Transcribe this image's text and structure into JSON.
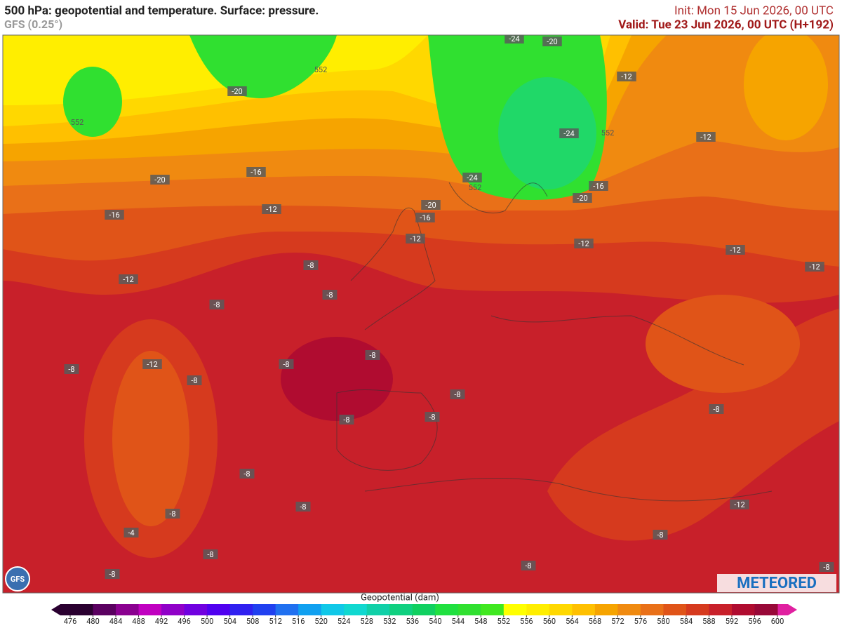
{
  "header": {
    "title": "500 hPa: geopotential and temperature. Surface: pressure.",
    "model": "GFS (0.25°)",
    "init": "Init: Mon 15 Jun 2026, 00 UTC",
    "valid": "Valid: Tue 23 Jun 2026, 00 UTC (H+192)"
  },
  "map": {
    "temperature_labels": [
      "-24",
      "-20",
      "-20",
      "-12",
      "-24",
      "-12",
      "-16",
      "-20",
      "-24",
      "-16",
      "-20",
      "-20",
      "-16",
      "-12",
      "-16",
      "-12",
      "-12",
      "-12",
      "-8",
      "-12",
      "-12",
      "-8",
      "-8",
      "-8",
      "-12",
      "-8",
      "-8",
      "-8",
      "-8",
      "-8",
      "-8",
      "-8",
      "-8",
      "-8",
      "-8",
      "-12",
      "-4",
      "-8",
      "-8",
      "-8",
      "-8",
      "-8"
    ],
    "isoline_labels": [
      "552",
      "552",
      "552",
      "552"
    ]
  },
  "colorbar": {
    "label": "Geopotential (dam)",
    "ticks": [
      476,
      480,
      484,
      488,
      492,
      496,
      500,
      504,
      508,
      512,
      516,
      520,
      524,
      528,
      532,
      536,
      540,
      544,
      548,
      552,
      556,
      560,
      564,
      568,
      572,
      576,
      580,
      584,
      588,
      592,
      596,
      600
    ],
    "colors": [
      "#2a0030",
      "#5a0060",
      "#8a0090",
      "#c000c0",
      "#9000c8",
      "#7000e0",
      "#5000f0",
      "#3020f0",
      "#2040f0",
      "#2070f0",
      "#10a0f0",
      "#10c8e8",
      "#10d8d0",
      "#10d0a8",
      "#10d080",
      "#10d060",
      "#20e040",
      "#30e030",
      "#40e820",
      "#ffff00",
      "#ffee00",
      "#ffd800",
      "#ffc000",
      "#f6a400",
      "#f08a10",
      "#e97018",
      "#e05418",
      "#d63a1e",
      "#c8202a",
      "#b00c30",
      "#980838"
    ]
  },
  "logos": {
    "left": "GFS",
    "right": "METEORED"
  }
}
